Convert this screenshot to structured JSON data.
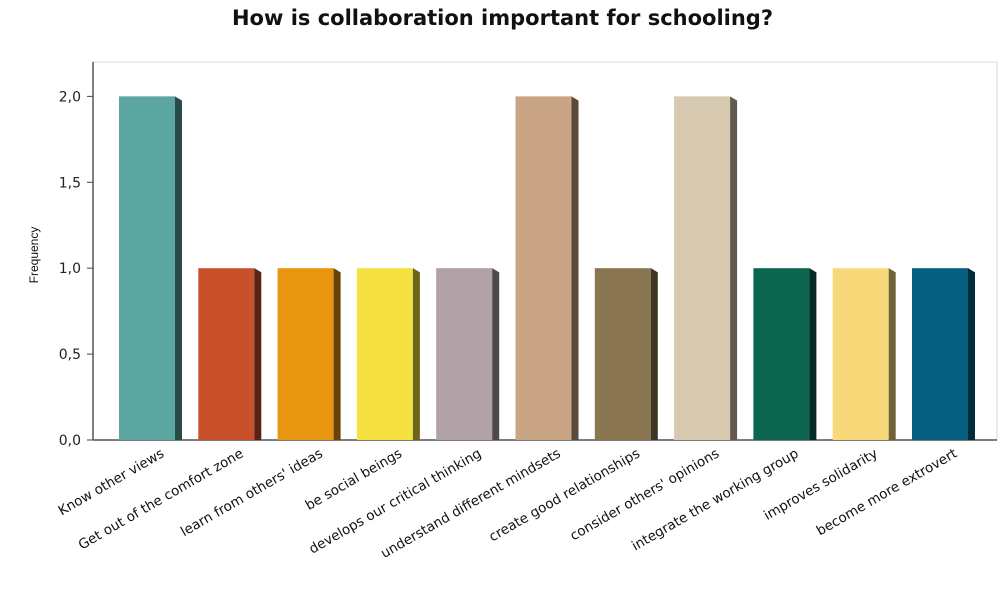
{
  "chart_data": {
    "type": "bar",
    "title": "How is collaboration important for schooling?",
    "xlabel": "",
    "ylabel": "Frequency",
    "ylim": [
      0,
      2.2
    ],
    "yticks": [
      0,
      0.5,
      1,
      1.5,
      2
    ],
    "ytick_labels": [
      "0,0",
      "0,5",
      "1,0",
      "1,5",
      "2,0"
    ],
    "grid": true,
    "categories": [
      "Know other views",
      "Get out of the comfort zone",
      "learn from others' ideas",
      "be social beings",
      "develops our critical thinking",
      "understand different mindsets",
      "create good relationships",
      "consider others' opinions",
      "integrate the working group",
      "improves solidarity",
      "become more extrovert"
    ],
    "values": [
      2,
      1,
      1,
      1,
      1,
      2,
      1,
      2,
      1,
      1,
      1
    ],
    "colors": [
      "#5ba6a0",
      "#c8512c",
      "#e8950f",
      "#f5e13f",
      "#b0a2a6",
      "#c9a585",
      "#8a7551",
      "#d8cab0",
      "#0c654f",
      "#f8d97a",
      "#05607f"
    ]
  }
}
